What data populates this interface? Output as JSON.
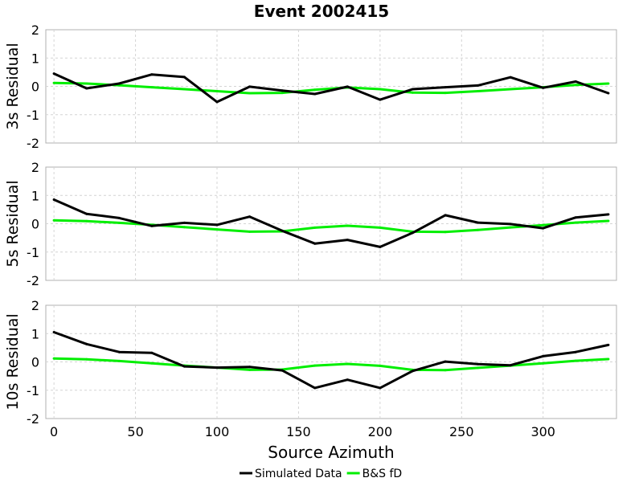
{
  "chart_data": {
    "type": "line",
    "title": "Event 2002415",
    "xlabel": "Source Azimuth",
    "xlim": [
      -5,
      345
    ],
    "xticks": [
      0,
      50,
      100,
      150,
      200,
      250,
      300
    ],
    "x": [
      0,
      20,
      40,
      60,
      80,
      100,
      120,
      140,
      160,
      180,
      200,
      220,
      240,
      260,
      280,
      300,
      320,
      340
    ],
    "legend": {
      "position": "bottom-center"
    },
    "grid": true,
    "colors": {
      "Simulated Data": "#000000",
      "B&S fD": "#00ee00"
    },
    "panels": [
      {
        "ylabel": "3s Residual",
        "ylim": [
          -2,
          2
        ],
        "yticks": [
          2,
          1,
          0,
          -1,
          -2
        ],
        "series": [
          {
            "name": "Simulated Data",
            "values": [
              0.45,
              -0.07,
              0.1,
              0.42,
              0.33,
              -0.55,
              -0.01,
              -0.15,
              -0.27,
              -0.01,
              -0.47,
              -0.1,
              -0.03,
              0.03,
              0.32,
              -0.05,
              0.17,
              -0.24
            ]
          },
          {
            "name": "B&S fD",
            "values": [
              0.12,
              0.1,
              0.04,
              -0.03,
              -0.1,
              -0.17,
              -0.24,
              -0.23,
              -0.12,
              -0.04,
              -0.1,
              -0.22,
              -0.23,
              -0.17,
              -0.1,
              -0.03,
              0.05,
              0.1
            ]
          }
        ]
      },
      {
        "ylabel": "5s Residual",
        "ylim": [
          -2,
          2
        ],
        "yticks": [
          2,
          1,
          0,
          -1,
          -2
        ],
        "series": [
          {
            "name": "Simulated Data",
            "values": [
              0.85,
              0.35,
              0.2,
              -0.08,
              0.03,
              -0.04,
              0.25,
              -0.25,
              -0.7,
              -0.57,
              -0.82,
              -0.32,
              0.3,
              0.04,
              -0.01,
              -0.16,
              0.22,
              0.33
            ]
          },
          {
            "name": "B&S fD",
            "values": [
              0.12,
              0.09,
              0.03,
              -0.04,
              -0.12,
              -0.2,
              -0.28,
              -0.27,
              -0.14,
              -0.07,
              -0.14,
              -0.28,
              -0.29,
              -0.22,
              -0.13,
              -0.05,
              0.04,
              0.1
            ]
          }
        ]
      },
      {
        "ylabel": "10s Residual",
        "ylim": [
          -2,
          2
        ],
        "yticks": [
          2,
          1,
          0,
          -1,
          -2
        ],
        "series": [
          {
            "name": "Simulated Data",
            "values": [
              1.05,
              0.63,
              0.35,
              0.32,
              -0.16,
              -0.2,
              -0.18,
              -0.3,
              -0.92,
              -0.63,
              -0.92,
              -0.32,
              0.01,
              -0.08,
              -0.12,
              0.2,
              0.35,
              0.6
            ]
          },
          {
            "name": "B&S fD",
            "values": [
              0.12,
              0.09,
              0.03,
              -0.05,
              -0.13,
              -0.2,
              -0.28,
              -0.27,
              -0.13,
              -0.07,
              -0.14,
              -0.28,
              -0.29,
              -0.21,
              -0.13,
              -0.05,
              0.04,
              0.1
            ]
          }
        ]
      }
    ]
  }
}
